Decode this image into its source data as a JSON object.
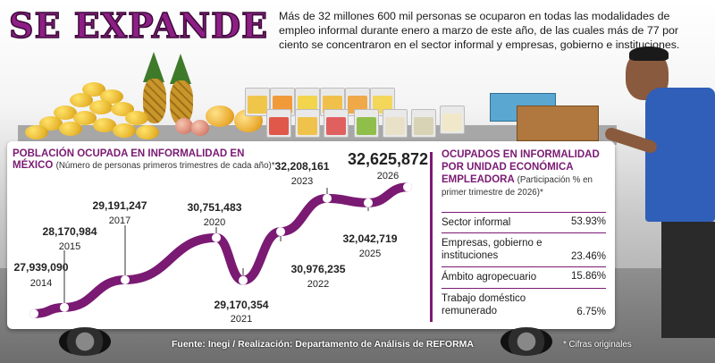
{
  "header": {
    "headline": "SE EXPANDE",
    "summary": "Más de 32 millones 600 mil personas se ocuparon en todas las modalidades de empleo informal durante enero a marzo de este año, de las cuales más de 77 por ciento se concentraron en el sector informal y empresas, gobierno e instituciones."
  },
  "colors": {
    "accent": "#7a1a73",
    "line": "#7a1a73",
    "headline": "#8e1f86"
  },
  "chart_data": {
    "type": "line",
    "title": "POBLACIÓN OCUPADA EN INFORMALIDAD EN MÉXICO",
    "subtitle": "(Número de personas primeros trimestres de cada año)*",
    "x": [
      "2014",
      "2015",
      "2017",
      "2020",
      "2021",
      "2022",
      "2023",
      "2025",
      "2026"
    ],
    "series": [
      {
        "values": [
          27939090,
          28170984,
          29191247,
          30751483,
          29170354,
          30976235,
          32208161,
          32042719,
          32625872
        ],
        "value_labels": [
          "27,939,090",
          "28,170,984",
          "29,191,247",
          "30,751,483",
          "29,170,354",
          "30,976,235",
          "32,208,161",
          "32,042,719",
          "32,625,872"
        ]
      }
    ],
    "ylim": [
      27900000,
      32700000
    ],
    "grid": false,
    "legend": "none"
  },
  "table": {
    "title": "OCUPADOS EN INFORMALIDAD POR UNIDAD ECONÓMICA",
    "title_emphasis": "EMPLEADORA",
    "subtitle": "(Participación % en primer trimestre de 2026)*",
    "rows": [
      {
        "label": "Sector informal",
        "value": "53.93%"
      },
      {
        "label": "Empresas, gobierno e instituciones",
        "value": "23.46%"
      },
      {
        "label": "Ámbito agropecuario",
        "value": "15.86%"
      },
      {
        "label": "Trabajo doméstico remunerado",
        "value": "6.75%"
      }
    ]
  },
  "footer": {
    "source": "Fuente: Inegi / Realización: Departamento de Análisis de REFORMA",
    "note": "* Cifras originales"
  }
}
